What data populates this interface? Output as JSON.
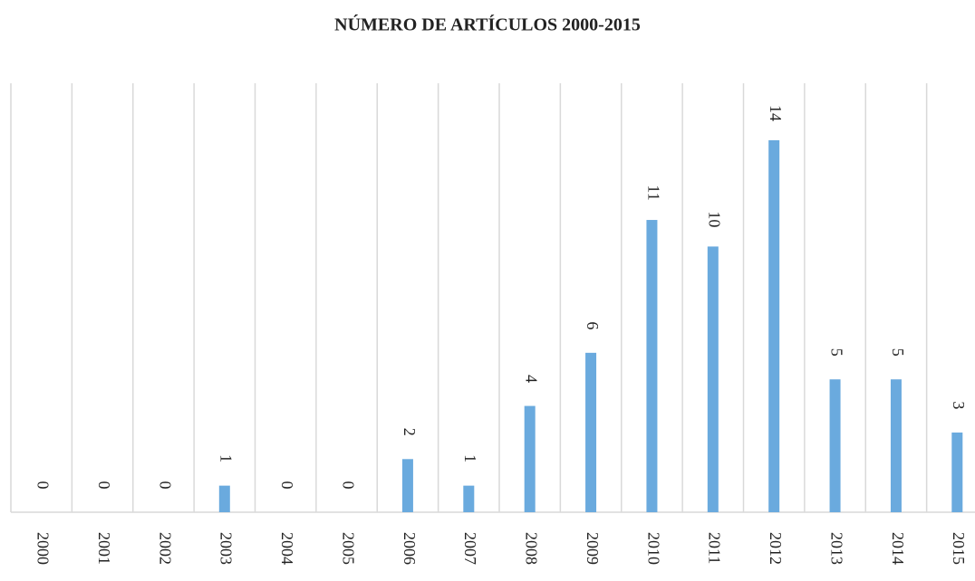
{
  "chart_data": {
    "type": "bar",
    "title": "NÚMERO DE ARTÍCULOS 2000-2015",
    "categories": [
      "2000",
      "2001",
      "2002",
      "2003",
      "2004",
      "2005",
      "2006",
      "2007",
      "2008",
      "2009",
      "2010",
      "2011",
      "2012",
      "2013",
      "2014",
      "2015"
    ],
    "values": [
      0,
      0,
      0,
      1,
      0,
      0,
      2,
      1,
      4,
      6,
      11,
      10,
      14,
      5,
      5,
      3
    ],
    "color": "#6aaade",
    "grid": true
  }
}
